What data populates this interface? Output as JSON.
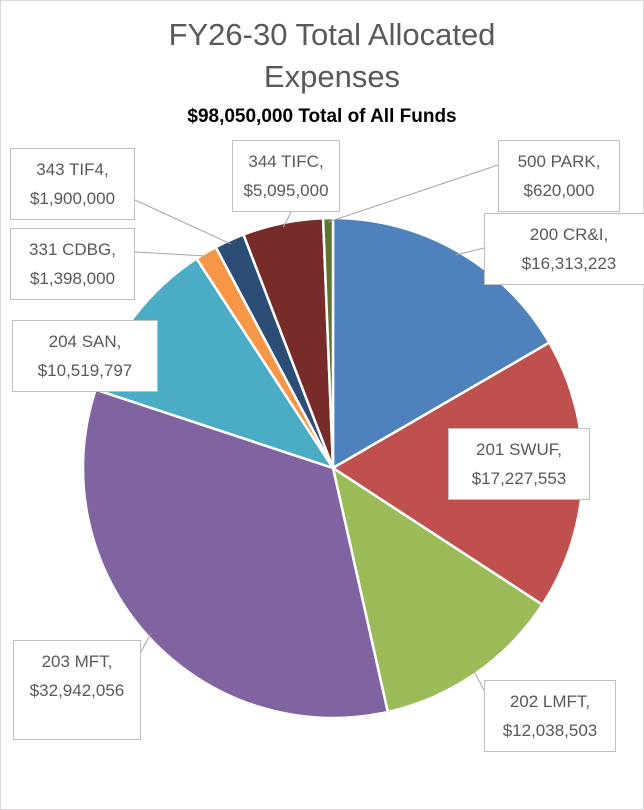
{
  "chart_data": {
    "type": "pie",
    "title": "FY26-30 Total Allocated Expenses",
    "subtitle": "$98,050,000 Total of All Funds",
    "categories": [
      "200 CR&I,",
      "201 SWUF,",
      "202 LMFT,",
      "203 MFT,",
      "204 SAN,",
      "331 CDBG,",
      "343 TIF4,",
      "344 TIFC,",
      "500 PARK,"
    ],
    "values": [
      16313223,
      17227553,
      12038503,
      32942056,
      10519797,
      1398000,
      1900000,
      5095000,
      620000
    ],
    "value_labels": [
      "$16,313,223",
      "$17,227,553",
      "$12,038,503",
      "$32,942,056",
      "$10,519,797",
      "$1,398,000",
      "$1,900,000",
      "$5,095,000",
      "$620,000"
    ],
    "colors": [
      "#4f81bd",
      "#c0504d",
      "#9bbb59",
      "#8064a2",
      "#4bacc6",
      "#f79646",
      "#2c4d75",
      "#772c2a",
      "#5f7530"
    ]
  }
}
